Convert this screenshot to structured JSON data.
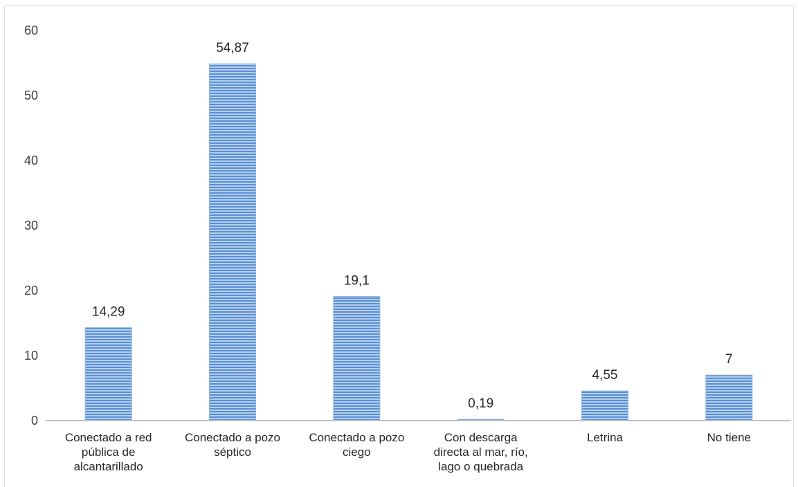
{
  "chart_data": {
    "type": "bar",
    "categories": [
      [
        "Conectado a red",
        "pública de",
        "alcantarillado"
      ],
      [
        "Conectado a pozo",
        "séptico"
      ],
      [
        "Conectado a pozo",
        "ciego"
      ],
      [
        "Con descarga",
        "directa al mar, río,",
        "lago o quebrada"
      ],
      [
        "Letrina"
      ],
      [
        "No tiene"
      ]
    ],
    "values": [
      14.29,
      54.87,
      19.1,
      0.19,
      4.55,
      7
    ],
    "value_labels": [
      "14,29",
      "54,87",
      "19,1",
      "0,19",
      "4,55",
      "7"
    ],
    "yticks": [
      0,
      10,
      20,
      30,
      40,
      50,
      60
    ],
    "ylim": [
      0,
      60
    ],
    "title": "",
    "xlabel": "",
    "ylabel": "",
    "grid": false,
    "legend": "none",
    "bar_color": "#8db4e2",
    "bar_stripe_color": "#5b8fd0",
    "axis_color": "#bfbfbf"
  }
}
